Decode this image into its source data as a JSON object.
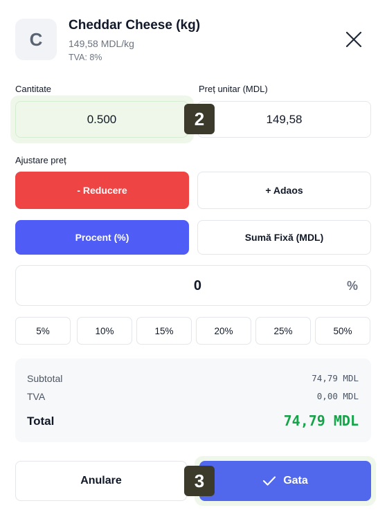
{
  "product": {
    "initial": "C",
    "name": "Cheddar Cheese (kg)",
    "price_per_unit": "149,58 MDL/kg",
    "vat": "TVA: 8%"
  },
  "fields": {
    "quantity_label": "Cantitate",
    "quantity_value": "0.500",
    "unit_price_label": "Preț unitar (MDL)",
    "unit_price_value": "149,58"
  },
  "adjustment": {
    "label": "Ajustare preț",
    "direction_options": [
      "- Reducere",
      "+ Adaos"
    ],
    "direction_selected": "- Reducere",
    "mode_options": [
      "Procent (%)",
      "Sumă Fixă (MDL)"
    ],
    "mode_selected": "Procent (%)",
    "value": "0",
    "unit": "%",
    "presets": [
      "5%",
      "10%",
      "15%",
      "20%",
      "25%",
      "50%"
    ]
  },
  "summary": {
    "subtotal_label": "Subtotal",
    "subtotal_value": "74,79 MDL",
    "vat_label": "TVA",
    "vat_value": "0,00 MDL",
    "total_label": "Total",
    "total_value": "74,79 MDL"
  },
  "actions": {
    "cancel_label": "Anulare",
    "done_label": "Gata"
  },
  "badges": [
    "2",
    "3"
  ],
  "colors": {
    "discount_red": "#ef4444",
    "accent_blue": "#4f5cf6",
    "done_blue": "#5167ec",
    "total_green": "#16a34a",
    "highlight_green": "#eef7e9"
  }
}
